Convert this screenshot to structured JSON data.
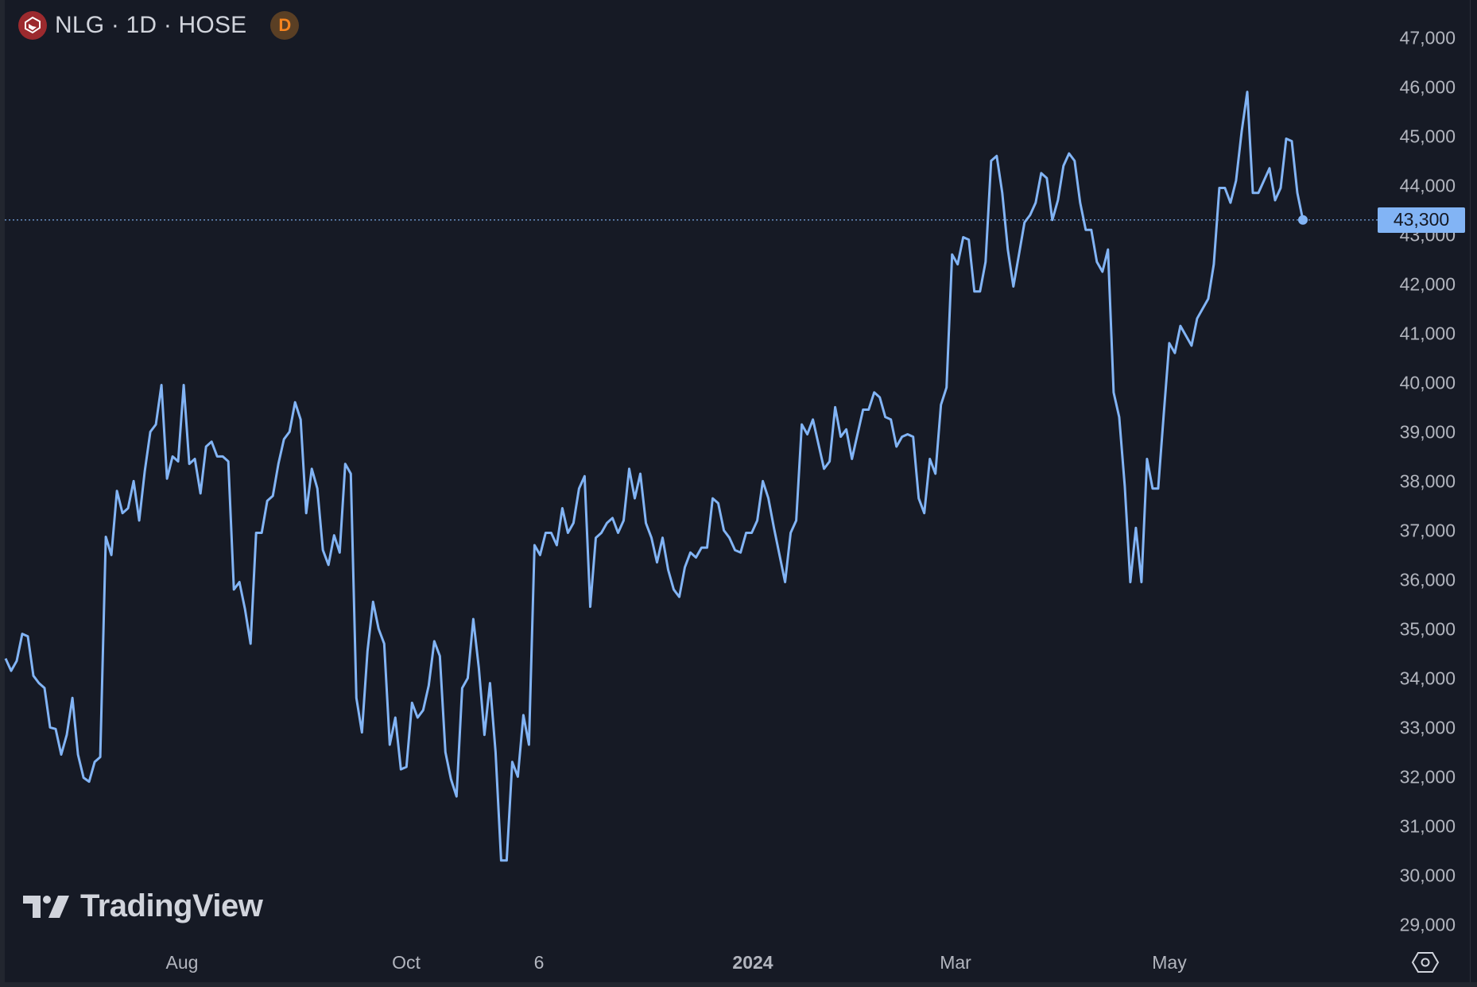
{
  "header": {
    "symbol_title": "NLG · 1D · HOSE",
    "data_badge": "D"
  },
  "watermark": "TradingView",
  "colors": {
    "background": "#161a25",
    "line": "#82b4f5",
    "price_label_bg": "#82b4f5",
    "symbol_logo": "#9c2a2e",
    "badge_bg": "#5a3f24",
    "badge_text": "#f5841f",
    "axis_text": "#b2b5be"
  },
  "chart_data": {
    "type": "line",
    "title": "",
    "xlabel": "",
    "ylabel": "",
    "ylim": [
      28700,
      47300
    ],
    "grid": false,
    "last_price_label": "43,300",
    "last_price": 43300,
    "y_ticks": [
      "47,000",
      "46,000",
      "45,000",
      "44,000",
      "43,000",
      "42,000",
      "41,000",
      "40,000",
      "39,000",
      "38,000",
      "37,000",
      "36,000",
      "35,000",
      "34,000",
      "33,000",
      "32,000",
      "31,000",
      "30,000",
      "29,000"
    ],
    "y_tick_values": [
      47000,
      46000,
      45000,
      44000,
      43000,
      42000,
      41000,
      40000,
      39000,
      38000,
      37000,
      36000,
      35000,
      34000,
      33000,
      32000,
      31000,
      30000,
      29000
    ],
    "x_ticks": [
      {
        "label": "Aug",
        "bold": false
      },
      {
        "label": "Oct",
        "bold": false
      },
      {
        "label": "6",
        "bold": false
      },
      {
        "label": "2024",
        "bold": true
      },
      {
        "label": "Mar",
        "bold": false
      },
      {
        "label": "May",
        "bold": false
      }
    ],
    "series": [
      {
        "values": [
          34400,
          34150,
          34350,
          34900,
          34850,
          34050,
          33900,
          33800,
          33000,
          32970,
          32450,
          32850,
          33600,
          32450,
          31980,
          31900,
          32300,
          32400,
          36870,
          36500,
          37800,
          37350,
          37450,
          38000,
          37200,
          38200,
          39000,
          39150,
          39950,
          38050,
          38500,
          38400,
          39950,
          38350,
          38450,
          37750,
          38700,
          38800,
          38500,
          38500,
          38400,
          35800,
          35950,
          35400,
          34700,
          36950,
          36950,
          37600,
          37700,
          38350,
          38850,
          39000,
          39600,
          39250,
          37350,
          38250,
          37850,
          36600,
          36300,
          36900,
          36550,
          38350,
          38150,
          33600,
          32900,
          34550,
          35550,
          35000,
          34700,
          32650,
          33200,
          32150,
          32200,
          33500,
          33200,
          33350,
          33850,
          34750,
          34450,
          32500,
          31950,
          31600,
          33800,
          34000,
          35200,
          34200,
          32850,
          33900,
          32500,
          30300,
          30300,
          32300,
          32000,
          33250,
          32650,
          36700,
          36500,
          36950,
          36950,
          36700,
          37450,
          36950,
          37150,
          37850,
          38100,
          35450,
          36850,
          36950,
          37150,
          37250,
          36950,
          37200,
          38250,
          37650,
          38150,
          37150,
          36850,
          36350,
          36850,
          36200,
          35800,
          35650,
          36250,
          36550,
          36450,
          36650,
          36650,
          37650,
          37550,
          37000,
          36850,
          36600,
          36550,
          36950,
          36950,
          37200,
          38000,
          37650,
          37050,
          36500,
          35950,
          36950,
          37200,
          39150,
          38950,
          39250,
          38750,
          38250,
          38400,
          39500,
          38900,
          39050,
          38450,
          38950,
          39450,
          39450,
          39800,
          39700,
          39300,
          39250,
          38700,
          38900,
          38950,
          38900,
          37650,
          37350,
          38450,
          38150,
          39550,
          39900,
          42600,
          42400,
          42950,
          42900,
          41850,
          41850,
          42450,
          44500,
          44600,
          43850,
          42700,
          41950,
          42600,
          43250,
          43400,
          43650,
          44250,
          44150,
          43300,
          43700,
          44400,
          44650,
          44500,
          43650,
          43100,
          43100,
          42450,
          42250,
          42700,
          39800,
          39300,
          37900,
          35950,
          37050,
          35950,
          38450,
          37850,
          37850,
          39350,
          40800,
          40600,
          41150,
          40950,
          40750,
          41300,
          41500,
          41700,
          42400,
          43950,
          43950,
          43650,
          44100,
          45100,
          45900,
          43850,
          43850,
          44100,
          44350,
          43700,
          43950,
          44950,
          44900,
          43850,
          43300
        ]
      }
    ]
  }
}
